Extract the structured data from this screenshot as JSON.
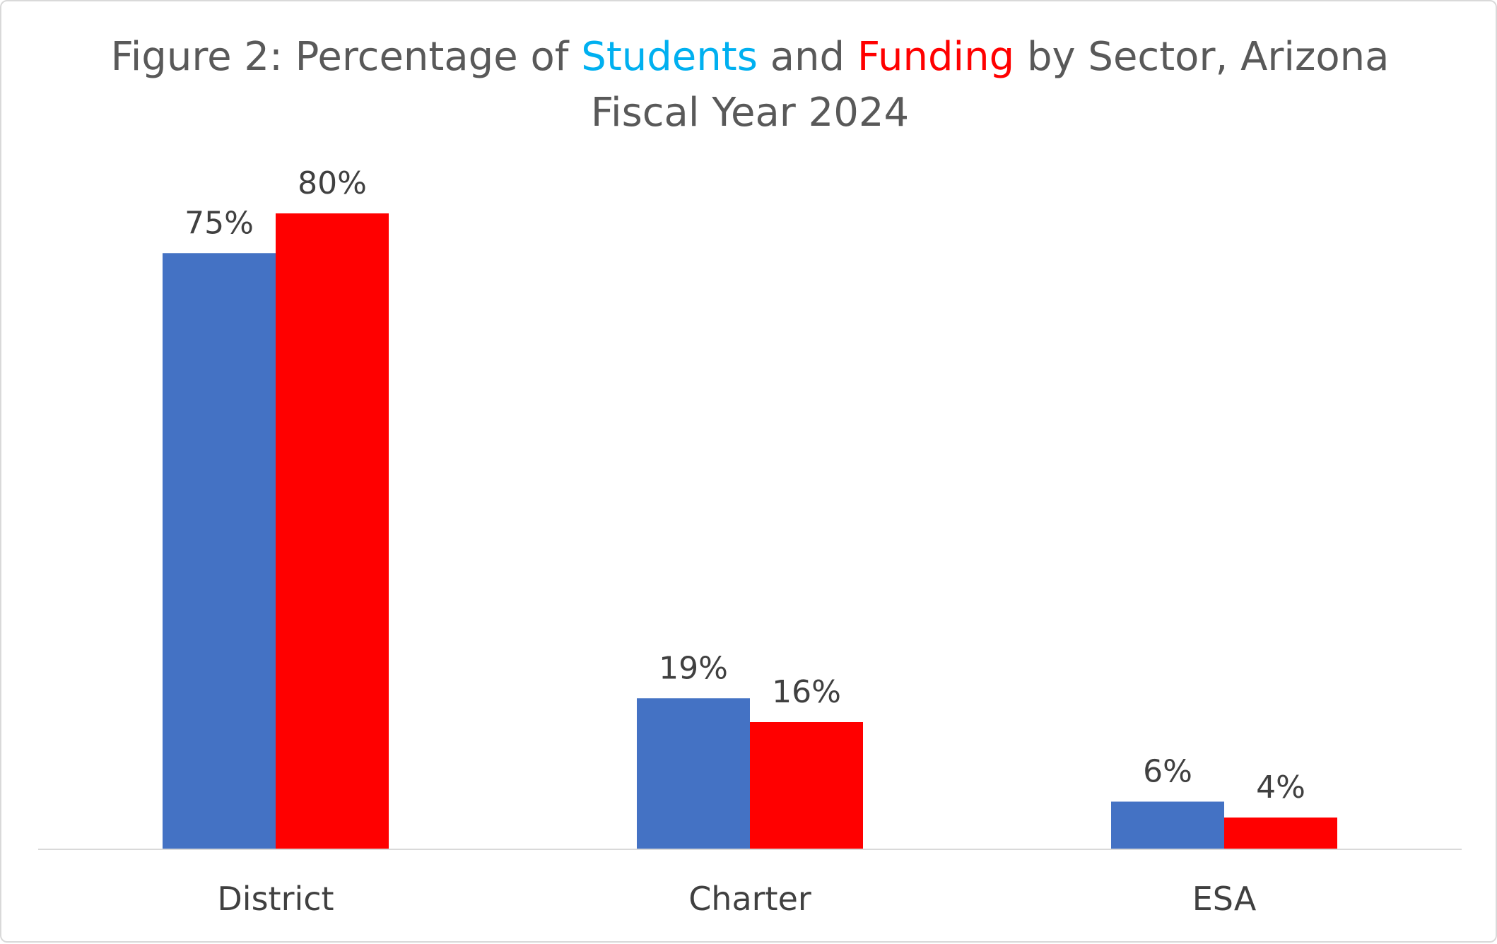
{
  "chart_data": {
    "type": "bar",
    "title_parts": [
      {
        "text": "Figure 2: Percentage of ",
        "color": "#595959"
      },
      {
        "text": "Students",
        "color": "#00B0F0"
      },
      {
        "text": " and ",
        "color": "#595959"
      },
      {
        "text": "Funding",
        "color": "#FF0000"
      },
      {
        "text": " by Sector, Arizona",
        "color": "#595959"
      }
    ],
    "subtitle": "Fiscal Year 2024",
    "categories": [
      "District",
      "Charter",
      "ESA"
    ],
    "series": [
      {
        "values": [
          75,
          19,
          6
        ],
        "labels": [
          "75%",
          "19%",
          "6%"
        ],
        "color": "#4472C4"
      },
      {
        "values": [
          80,
          16,
          4
        ],
        "labels": [
          "80%",
          "16%",
          "4%"
        ],
        "color": "#FF0000"
      }
    ],
    "ylim": [
      0,
      100
    ],
    "grid": false,
    "legend": "none",
    "axis_line_color": "#d9d9d9"
  }
}
